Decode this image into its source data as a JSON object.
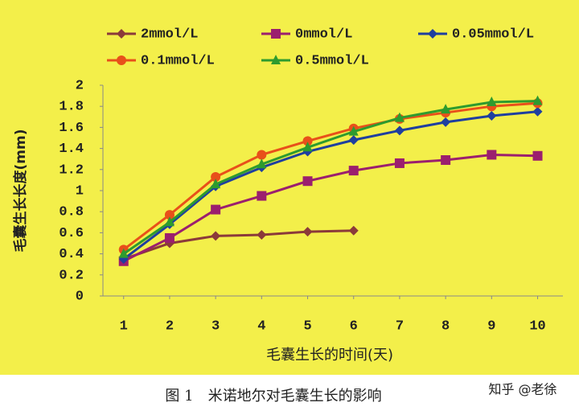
{
  "chart_data": {
    "type": "line",
    "y_label": "毛囊生长长度(mm)",
    "x_label": "毛囊生长的时间(天)",
    "caption": "图 1　米诺地尔对毛囊生长的影响",
    "watermark": "知乎 @老徐",
    "x": [
      1,
      2,
      3,
      4,
      5,
      6,
      7,
      8,
      9,
      10
    ],
    "xlim": [
      0.55,
      10.55
    ],
    "xticks": [
      1,
      2,
      3,
      4,
      5,
      6,
      7,
      8,
      9,
      10
    ],
    "ylim": [
      0,
      2
    ],
    "yticks": [
      0,
      0.2,
      0.4,
      0.6,
      0.8,
      1,
      1.2,
      1.4,
      1.6,
      1.8,
      2
    ],
    "series": [
      {
        "name": "2mmol/L",
        "color": "#8b3a3a",
        "marker": "diamond",
        "values": [
          0.35,
          0.5,
          0.57,
          0.58,
          0.61,
          0.62,
          null,
          null,
          null,
          null
        ]
      },
      {
        "name": "0mmol/L",
        "color": "#9b1f6e",
        "marker": "square",
        "values": [
          0.33,
          0.55,
          0.82,
          0.95,
          1.09,
          1.19,
          1.26,
          1.29,
          1.34,
          1.33
        ]
      },
      {
        "name": "0.05mmol/L",
        "color": "#1f3f9f",
        "marker": "diamond",
        "values": [
          0.35,
          0.68,
          1.04,
          1.22,
          1.37,
          1.48,
          1.57,
          1.65,
          1.71,
          1.75
        ]
      },
      {
        "name": "0.1mmol/L",
        "color": "#e8501a",
        "marker": "circle",
        "values": [
          0.44,
          0.77,
          1.13,
          1.34,
          1.47,
          1.59,
          1.68,
          1.74,
          1.8,
          1.83
        ]
      },
      {
        "name": "0.5mmol/L",
        "color": "#2e9b2e",
        "marker": "triangle",
        "values": [
          0.4,
          0.7,
          1.06,
          1.25,
          1.41,
          1.56,
          1.69,
          1.77,
          1.84,
          1.85
        ]
      }
    ]
  }
}
